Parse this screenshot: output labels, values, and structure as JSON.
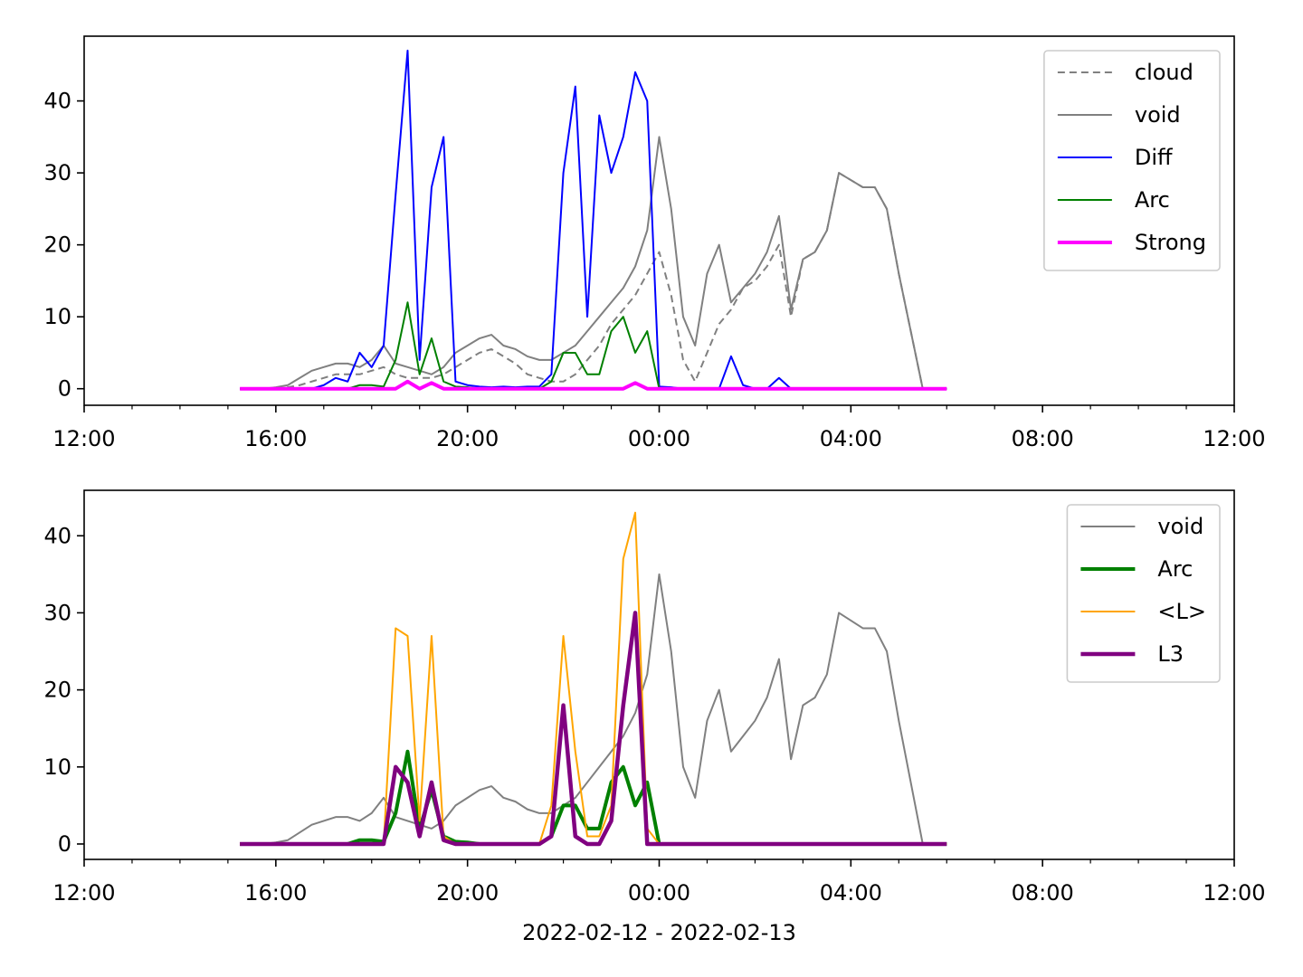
{
  "chart_data": [
    {
      "type": "line",
      "x": [
        15.25,
        15.5,
        15.75,
        16,
        16.25,
        16.5,
        16.75,
        17,
        17.25,
        17.5,
        17.75,
        18,
        18.25,
        18.5,
        18.75,
        19,
        19.25,
        19.5,
        19.75,
        20,
        20.25,
        20.5,
        20.75,
        21,
        21.25,
        21.5,
        21.75,
        22,
        22.25,
        22.5,
        22.75,
        23,
        23.25,
        23.5,
        23.75,
        24,
        24.25,
        24.5,
        24.75,
        25,
        25.25,
        25.5,
        25.75,
        26,
        26.25,
        26.5,
        26.75,
        27,
        27.25,
        27.5,
        27.75,
        28,
        28.25,
        28.5,
        28.75,
        29,
        29.25,
        29.5,
        29.75,
        30
      ],
      "series": [
        {
          "name": "cloud",
          "color": "#808080",
          "linestyle": "dashed",
          "linewidth": 2,
          "values": [
            0,
            0,
            0,
            0,
            0.2,
            0.5,
            1,
            1.5,
            2,
            2,
            2,
            2.5,
            3,
            2,
            1.5,
            1.5,
            1.5,
            2,
            3,
            4,
            5,
            5.5,
            4.5,
            3.5,
            2,
            1.5,
            1,
            1,
            2,
            4,
            6,
            9,
            11,
            13,
            16,
            19,
            13,
            4,
            1,
            5,
            9,
            11,
            14,
            15,
            17,
            20,
            10,
            18,
            19,
            22,
            30,
            29,
            28,
            28,
            25,
            16,
            8,
            0,
            0,
            0
          ]
        },
        {
          "name": "void",
          "color": "#808080",
          "linestyle": "solid",
          "linewidth": 2,
          "values": [
            0,
            0,
            0,
            0.2,
            0.5,
            1.5,
            2.5,
            3,
            3.5,
            3.5,
            3,
            4,
            6,
            3.5,
            3,
            2.5,
            2,
            3,
            5,
            6,
            7,
            7.5,
            6,
            5.5,
            4.5,
            4,
            4,
            5,
            6,
            8,
            10,
            12,
            14,
            17,
            22,
            35,
            25,
            10,
            6,
            16,
            20,
            12,
            14,
            16,
            19,
            24,
            11,
            18,
            19,
            22,
            30,
            29,
            28,
            28,
            25,
            16,
            8,
            0,
            0,
            0
          ]
        },
        {
          "name": "Diff",
          "color": "#0000ff",
          "linestyle": "solid",
          "linewidth": 2,
          "values": [
            0,
            0,
            0,
            0,
            0,
            0,
            0,
            0.5,
            1.5,
            1,
            5,
            3,
            6,
            27,
            47,
            4,
            28,
            35,
            1,
            0.5,
            0.3,
            0.2,
            0.3,
            0.2,
            0.3,
            0.3,
            2,
            30,
            42,
            10,
            38,
            30,
            35,
            44,
            40,
            0.3,
            0.2,
            0,
            0,
            0,
            0,
            4.5,
            0.5,
            0,
            0,
            1.5,
            0,
            0,
            0,
            0,
            0,
            0,
            0,
            0,
            0,
            0,
            0,
            0,
            0,
            0
          ]
        },
        {
          "name": "Arc",
          "color": "#008000",
          "linestyle": "solid",
          "linewidth": 2,
          "values": [
            0,
            0,
            0,
            0,
            0,
            0,
            0,
            0,
            0,
            0,
            0.5,
            0.5,
            0.3,
            4,
            12,
            2,
            7,
            1,
            0.3,
            0.2,
            0,
            0,
            0,
            0,
            0,
            0,
            1,
            5,
            5,
            2,
            2,
            8,
            10,
            5,
            8,
            0,
            0,
            0,
            0,
            0,
            0,
            0,
            0,
            0,
            0,
            0,
            0,
            0,
            0,
            0,
            0,
            0,
            0,
            0,
            0,
            0,
            0,
            0,
            0,
            0
          ]
        },
        {
          "name": "Strong",
          "color": "#ff00ff",
          "linestyle": "solid",
          "linewidth": 4,
          "values": [
            0,
            0,
            0,
            0,
            0,
            0,
            0,
            0,
            0,
            0,
            0,
            0,
            0,
            0,
            1,
            0,
            0.8,
            0,
            0,
            0,
            0,
            0,
            0,
            0,
            0,
            0,
            0,
            0,
            0,
            0,
            0,
            0,
            0,
            0.8,
            0,
            0,
            0,
            0,
            0,
            0,
            0,
            0,
            0,
            0,
            0,
            0,
            0,
            0,
            0,
            0,
            0,
            0,
            0,
            0,
            0,
            0,
            0,
            0,
            0,
            0
          ]
        }
      ],
      "xlim": [
        12,
        36
      ],
      "xticks": [
        {
          "value": 12,
          "label": "12:00"
        },
        {
          "value": 16,
          "label": "16:00"
        },
        {
          "value": 20,
          "label": "20:00"
        },
        {
          "value": 24,
          "label": "00:00"
        },
        {
          "value": 28,
          "label": "04:00"
        },
        {
          "value": 32,
          "label": "08:00"
        },
        {
          "value": 36,
          "label": "12:00"
        }
      ],
      "xminorticks": [
        13,
        14,
        15,
        17,
        18,
        19,
        21,
        22,
        23,
        25,
        26,
        27,
        29,
        30,
        31,
        33,
        34,
        35
      ],
      "ylim": [
        -2.3,
        49
      ],
      "yticks": [
        0,
        10,
        20,
        30,
        40
      ],
      "legend": "upper right"
    },
    {
      "type": "line",
      "x": [
        15.25,
        15.5,
        15.75,
        16,
        16.25,
        16.5,
        16.75,
        17,
        17.25,
        17.5,
        17.75,
        18,
        18.25,
        18.5,
        18.75,
        19,
        19.25,
        19.5,
        19.75,
        20,
        20.25,
        20.5,
        20.75,
        21,
        21.25,
        21.5,
        21.75,
        22,
        22.25,
        22.5,
        22.75,
        23,
        23.25,
        23.5,
        23.75,
        24,
        24.25,
        24.5,
        24.75,
        25,
        25.25,
        25.5,
        25.75,
        26,
        26.25,
        26.5,
        26.75,
        27,
        27.25,
        27.5,
        27.75,
        28,
        28.25,
        28.5,
        28.75,
        29,
        29.25,
        29.5,
        29.75,
        30
      ],
      "series": [
        {
          "name": "void",
          "color": "#808080",
          "linestyle": "solid",
          "linewidth": 2,
          "values": [
            0,
            0,
            0,
            0.2,
            0.5,
            1.5,
            2.5,
            3,
            3.5,
            3.5,
            3,
            4,
            6,
            3.5,
            3,
            2.5,
            2,
            3,
            5,
            6,
            7,
            7.5,
            6,
            5.5,
            4.5,
            4,
            4,
            5,
            6,
            8,
            10,
            12,
            14,
            17,
            22,
            35,
            25,
            10,
            6,
            16,
            20,
            12,
            14,
            16,
            19,
            24,
            11,
            18,
            19,
            22,
            30,
            29,
            28,
            28,
            25,
            16,
            8,
            0,
            0,
            0
          ]
        },
        {
          "name": "Arc",
          "color": "#008000",
          "linestyle": "solid",
          "linewidth": 4,
          "values": [
            0,
            0,
            0,
            0,
            0,
            0,
            0,
            0,
            0,
            0,
            0.5,
            0.5,
            0.3,
            4,
            12,
            2,
            7,
            1,
            0.3,
            0.2,
            0,
            0,
            0,
            0,
            0,
            0,
            1,
            5,
            5,
            2,
            2,
            8,
            10,
            5,
            8,
            0,
            0,
            0,
            0,
            0,
            0,
            0,
            0,
            0,
            0,
            0,
            0,
            0,
            0,
            0,
            0,
            0,
            0,
            0,
            0,
            0,
            0,
            0,
            0,
            0
          ]
        },
        {
          "name": "<L>",
          "color": "#ffa500",
          "linestyle": "solid",
          "linewidth": 2,
          "values": [
            0,
            0,
            0,
            0,
            0,
            0,
            0,
            0,
            0,
            0,
            0,
            0,
            0,
            28,
            27,
            3,
            27,
            1,
            0,
            0,
            0,
            0,
            0,
            0,
            0,
            0,
            5,
            27,
            12,
            1,
            1,
            5,
            37,
            43,
            2,
            0,
            0,
            0,
            0,
            0,
            0,
            0,
            0,
            0,
            0,
            0,
            0,
            0,
            0,
            0,
            0,
            0,
            0,
            0,
            0,
            0,
            0,
            0,
            0,
            0
          ]
        },
        {
          "name": "L3",
          "color": "#800080",
          "linestyle": "solid",
          "linewidth": 4.5,
          "values": [
            0,
            0,
            0,
            0,
            0,
            0,
            0,
            0,
            0,
            0,
            0,
            0,
            0,
            10,
            8,
            1,
            8,
            0.5,
            0,
            0,
            0,
            0,
            0,
            0,
            0,
            0,
            1,
            18,
            1,
            0,
            0,
            3,
            18,
            30,
            0,
            0,
            0,
            0,
            0,
            0,
            0,
            0,
            0,
            0,
            0,
            0,
            0,
            0,
            0,
            0,
            0,
            0,
            0,
            0,
            0,
            0,
            0,
            0,
            0,
            0
          ]
        }
      ],
      "xlim": [
        12,
        36
      ],
      "xticks": [
        {
          "value": 12,
          "label": "12:00"
        },
        {
          "value": 16,
          "label": "16:00"
        },
        {
          "value": 20,
          "label": "20:00"
        },
        {
          "value": 24,
          "label": "00:00"
        },
        {
          "value": 28,
          "label": "04:00"
        },
        {
          "value": 32,
          "label": "08:00"
        },
        {
          "value": 36,
          "label": "12:00"
        }
      ],
      "xminorticks": [
        13,
        14,
        15,
        17,
        18,
        19,
        21,
        22,
        23,
        25,
        26,
        27,
        29,
        30,
        31,
        33,
        34,
        35
      ],
      "ylim": [
        -2.0,
        45.9
      ],
      "yticks": [
        0,
        10,
        20,
        30,
        40
      ],
      "xlabel": "2022-02-12 - 2022-02-13",
      "legend": "upper right"
    }
  ]
}
